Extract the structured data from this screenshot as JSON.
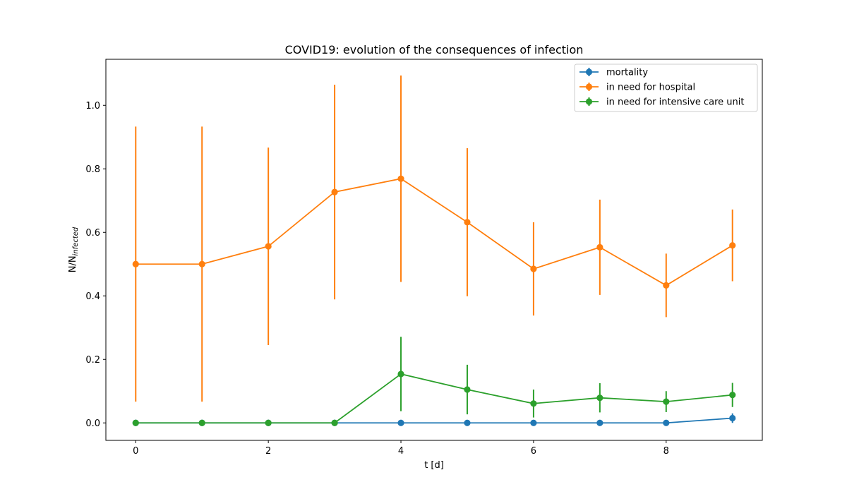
{
  "chart_data": {
    "type": "line",
    "title": "COVID19: evolution of the consequences of infection",
    "xlabel": "t [d]",
    "ylabel": {
      "base": "N/N",
      "subscript": "infected"
    },
    "x": [
      0,
      1,
      2,
      3,
      4,
      5,
      6,
      7,
      8,
      9
    ],
    "xlim": [
      -0.45,
      9.45
    ],
    "ylim": [
      -0.055,
      1.145
    ],
    "xticks": [
      "0",
      "2",
      "4",
      "6",
      "8"
    ],
    "xtick_values": [
      0,
      2,
      4,
      6,
      8
    ],
    "yticks": [
      "0.0",
      "0.2",
      "0.4",
      "0.6",
      "0.8",
      "1.0"
    ],
    "ytick_values": [
      0.0,
      0.2,
      0.4,
      0.6,
      0.8,
      1.0
    ],
    "grid": false,
    "legend_position": "top-right",
    "series": [
      {
        "name": "mortality",
        "color": "#1f77b4",
        "values": [
          0,
          0,
          0,
          0,
          0,
          0,
          0,
          0,
          0,
          0.015
        ],
        "error": [
          0,
          0,
          0,
          0,
          0,
          0,
          0,
          0,
          0,
          0.015
        ]
      },
      {
        "name": "in need for hospital",
        "color": "#ff7f0e",
        "values": [
          0.5,
          0.5,
          0.556,
          0.727,
          0.769,
          0.632,
          0.485,
          0.553,
          0.433,
          0.559
        ],
        "error": [
          0.433,
          0.433,
          0.311,
          0.338,
          0.325,
          0.233,
          0.147,
          0.15,
          0.1,
          0.113
        ]
      },
      {
        "name": "in need for intensive care unit",
        "color": "#2ca02c",
        "values": [
          0,
          0,
          0,
          0,
          0.154,
          0.105,
          0.061,
          0.079,
          0.067,
          0.088
        ],
        "error": [
          0,
          0,
          0,
          0,
          0.117,
          0.078,
          0.044,
          0.046,
          0.033,
          0.038
        ]
      }
    ]
  }
}
